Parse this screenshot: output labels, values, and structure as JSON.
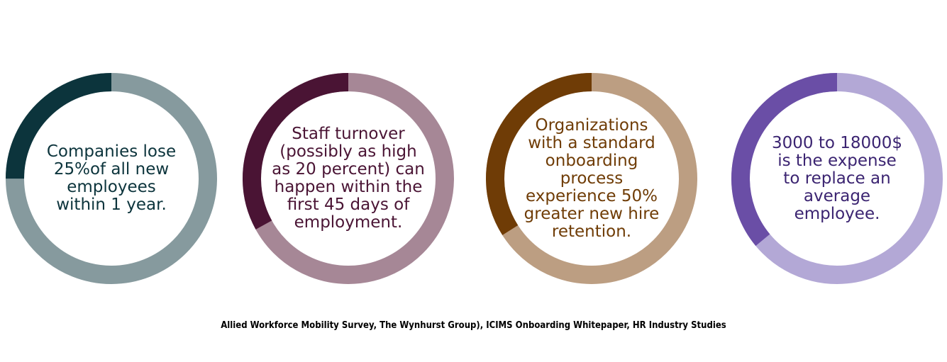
{
  "stats": [
    {
      "text": "Companies lose\n25%of all new\nemployees\nwithin 1 year.",
      "fraction": 0.25,
      "colors": {
        "accent": "#0c343c",
        "track": "#869a9e",
        "text": "#0c343c"
      }
    },
    {
      "text": "Staff turnover\n(possibly as high\nas 20 percent) can\nhappen within the\nfirst 45 days of\nemployment.",
      "fraction": 0.33,
      "colors": {
        "accent": "#4a1434",
        "track": "#a68796",
        "text": "#4a1434"
      }
    },
    {
      "text": "Organizations\nwith a standard\nonboarding\nprocess\nexperience 50%\ngreater new hire\nretention.",
      "fraction": 0.34,
      "colors": {
        "accent": "#6f3c06",
        "track": "#bc9e82",
        "text": "#6f3c06"
      }
    },
    {
      "text": "3000 to 18000$\nis the expense\nto replace an\naverage\nemployee.",
      "fraction": 0.36,
      "colors": {
        "accent": "#6a4ea6",
        "track": "#b3a8d6",
        "text": "#3b2471"
      }
    }
  ],
  "source": "Allied Workforce Mobility Survey, The Wynhurst Group), ICIMS Onboarding Whitepaper, HR Industry Studies"
}
